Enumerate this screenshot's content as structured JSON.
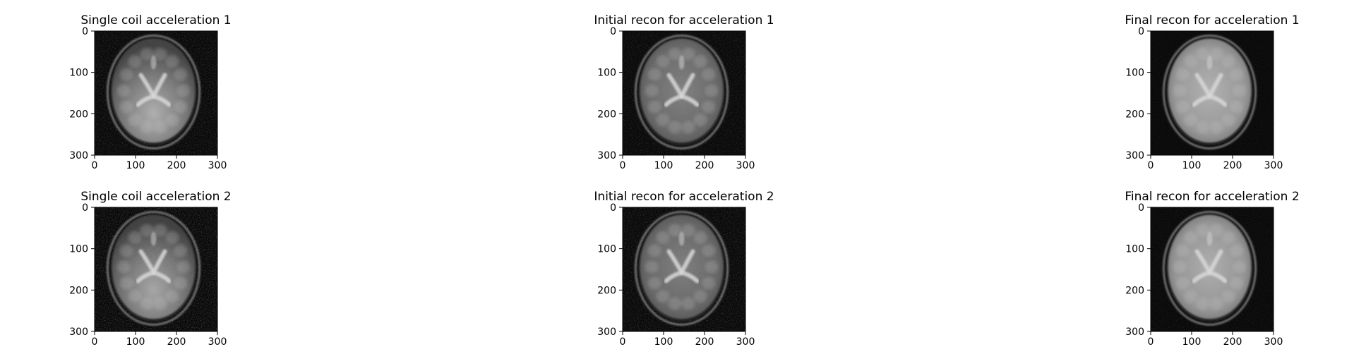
{
  "figure": {
    "panels": [
      {
        "title": "Single coil acceleration 1",
        "x_ticks": [
          "0",
          "100",
          "200",
          "300"
        ],
        "y_ticks": [
          "0",
          "100",
          "200",
          "300"
        ],
        "image": "brain-mri-single-coil",
        "noise": 0.35,
        "brightness": 0.55,
        "shading": "bottom-bright"
      },
      {
        "title": "Initial recon for acceleration 1",
        "x_ticks": [
          "0",
          "100",
          "200",
          "300"
        ],
        "y_ticks": [
          "0",
          "100",
          "200",
          "300"
        ],
        "image": "brain-mri-initial-recon",
        "noise": 0.28,
        "brightness": 0.5,
        "shading": "even"
      },
      {
        "title": "Final recon for acceleration 1",
        "x_ticks": [
          "0",
          "100",
          "200",
          "300"
        ],
        "y_ticks": [
          "0",
          "100",
          "200",
          "300"
        ],
        "image": "brain-mri-final-recon",
        "noise": 0.12,
        "brightness": 0.68,
        "shading": "even"
      },
      {
        "title": "Single coil acceleration 2",
        "x_ticks": [
          "0",
          "100",
          "200",
          "300"
        ],
        "y_ticks": [
          "0",
          "100",
          "200",
          "300"
        ],
        "image": "brain-mri-single-coil",
        "noise": 0.45,
        "brightness": 0.5,
        "shading": "bottom-bright"
      },
      {
        "title": "Initial recon for acceleration 2",
        "x_ticks": [
          "0",
          "100",
          "200",
          "300"
        ],
        "y_ticks": [
          "0",
          "100",
          "200",
          "300"
        ],
        "image": "brain-mri-initial-recon",
        "noise": 0.36,
        "brightness": 0.48,
        "shading": "even"
      },
      {
        "title": "Final recon for acceleration 2",
        "x_ticks": [
          "0",
          "100",
          "200",
          "300"
        ],
        "y_ticks": [
          "0",
          "100",
          "200",
          "300"
        ],
        "image": "brain-mri-final-recon",
        "noise": 0.16,
        "brightness": 0.66,
        "shading": "even"
      }
    ],
    "colors": {
      "background": "#ffffff",
      "axis": "#000000",
      "image_background": "#0a0a0a",
      "brain_tissue": "#8a8a8a",
      "ventricles": "#d8d8d8",
      "skull_ring": "#b0b0b0"
    }
  }
}
